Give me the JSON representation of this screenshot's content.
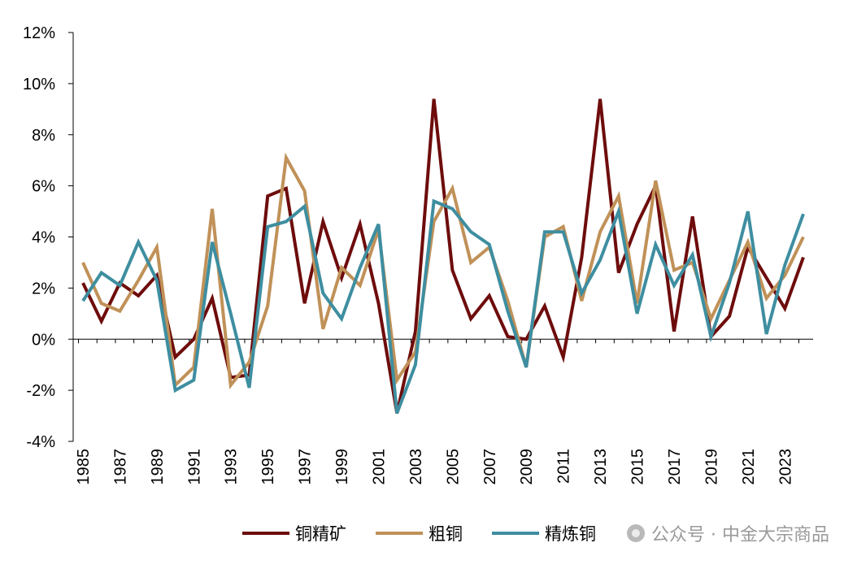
{
  "chart_data": {
    "type": "line",
    "title": "",
    "xlabel": "",
    "ylabel": "",
    "ylim": [
      -4,
      12
    ],
    "yticks": [
      -4,
      -2,
      0,
      2,
      4,
      6,
      8,
      10,
      12
    ],
    "ytick_labels": [
      "-4%",
      "-2%",
      "0%",
      "2%",
      "4%",
      "6%",
      "8%",
      "10%",
      "12%"
    ],
    "x": [
      1985,
      1986,
      1987,
      1988,
      1989,
      1990,
      1991,
      1992,
      1993,
      1994,
      1995,
      1996,
      1997,
      1998,
      1999,
      2000,
      2001,
      2002,
      2003,
      2004,
      2005,
      2006,
      2007,
      2008,
      2009,
      2010,
      2011,
      2012,
      2013,
      2014,
      2015,
      2016,
      2017,
      2018,
      2019,
      2020,
      2021,
      2022,
      2023,
      2024
    ],
    "xtick_labels": [
      "1985",
      "1987",
      "1989",
      "1991",
      "1993",
      "1995",
      "1997",
      "1999",
      "2001",
      "2003",
      "2005",
      "2007",
      "2009",
      "2011",
      "2013",
      "2015",
      "2017",
      "2019",
      "2021",
      "2023"
    ],
    "series": [
      {
        "name": "铜精矿",
        "color": "#6e0c0c",
        "values": [
          2.2,
          0.7,
          2.2,
          1.7,
          2.5,
          -0.7,
          0.0,
          1.6,
          -1.5,
          -1.4,
          5.6,
          5.9,
          1.4,
          4.6,
          2.4,
          4.5,
          1.4,
          -2.9,
          0.3,
          9.4,
          2.7,
          0.8,
          1.7,
          0.1,
          0.0,
          1.3,
          -0.7,
          3.2,
          9.4,
          2.6,
          4.5,
          6.0,
          0.3,
          4.8,
          0.1,
          0.9,
          3.6,
          2.4,
          1.2,
          3.2
        ]
      },
      {
        "name": "粗铜",
        "color": "#c09158",
        "values": [
          3.0,
          1.4,
          1.1,
          2.3,
          3.6,
          -1.8,
          -1.1,
          5.1,
          -1.8,
          -0.9,
          1.3,
          7.1,
          5.8,
          0.4,
          2.8,
          2.1,
          4.3,
          -1.6,
          -0.5,
          4.6,
          5.9,
          3.0,
          3.6,
          1.5,
          -1.1,
          4.0,
          4.4,
          1.5,
          4.2,
          5.6,
          1.4,
          6.2,
          2.7,
          3.0,
          0.8,
          2.3,
          3.8,
          1.6,
          2.5,
          4.0
        ]
      },
      {
        "name": "精炼铜",
        "color": "#3e8ea0",
        "values": [
          1.5,
          2.6,
          2.1,
          3.8,
          2.3,
          -2.0,
          -1.6,
          3.8,
          1.0,
          -1.9,
          4.4,
          4.6,
          5.2,
          1.8,
          0.8,
          2.8,
          4.5,
          -2.9,
          -1.0,
          5.4,
          5.1,
          4.2,
          3.7,
          1.1,
          -1.1,
          4.2,
          4.2,
          1.8,
          3.1,
          5.0,
          1.0,
          3.7,
          2.1,
          3.3,
          0.1,
          2.2,
          5.0,
          0.2,
          2.9,
          4.9
        ]
      }
    ],
    "legend_position": "bottom",
    "grid": false
  },
  "watermark": {
    "text": "公众号 · 中金大宗商品",
    "icon": "wechat-icon"
  }
}
